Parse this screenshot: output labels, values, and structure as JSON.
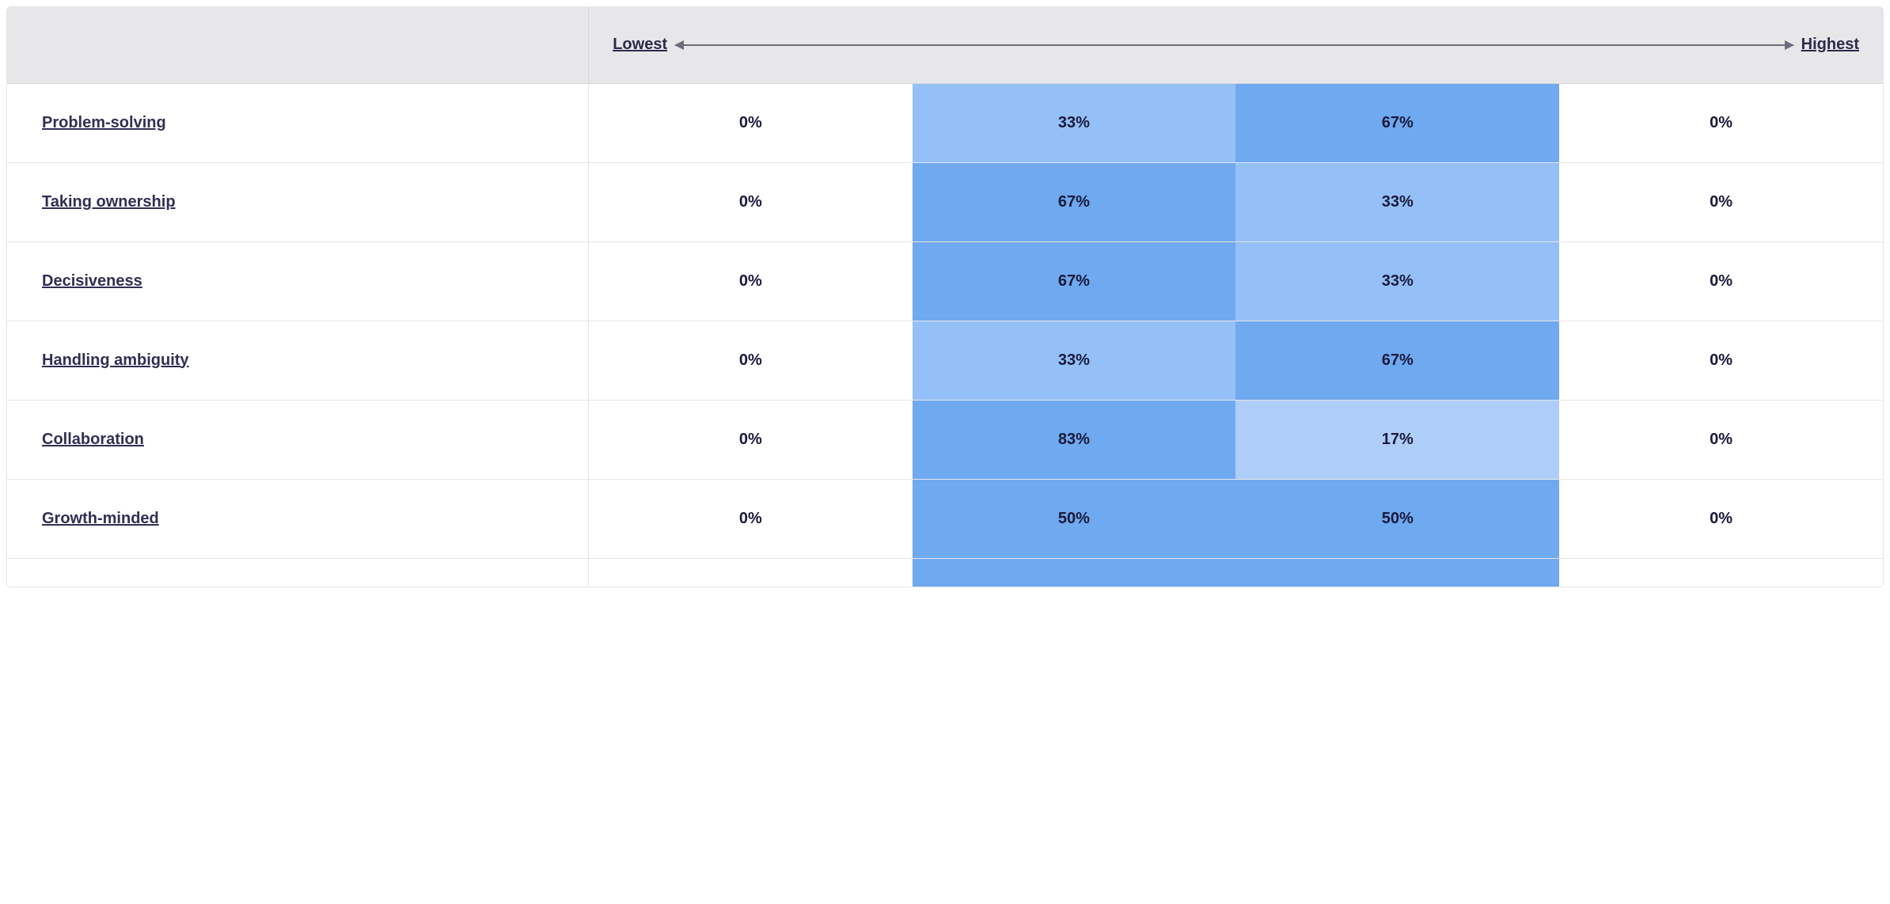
{
  "header": {
    "lowest_label": "Lowest",
    "highest_label": "Highest"
  },
  "colors": {
    "text": "#1a1a3a",
    "link": "#2f2f55",
    "header_bg": "#e7e7ea",
    "border": "#e5e5e8",
    "arrow": "#6c6c7a",
    "cell_bg_default": "#ffffff"
  },
  "heatmap": {
    "type": "table-heatmap",
    "columns": 4,
    "value_suffix": "%",
    "rows": [
      {
        "label": "Problem-solving",
        "values": [
          0,
          33,
          67,
          0
        ],
        "bg_colors": [
          "#ffffff",
          "#94c0f7",
          "#6fa9f0",
          "#ffffff"
        ]
      },
      {
        "label": "Taking ownership",
        "values": [
          0,
          67,
          33,
          0
        ],
        "bg_colors": [
          "#ffffff",
          "#6fa9f0",
          "#94c0f7",
          "#ffffff"
        ]
      },
      {
        "label": "Decisiveness",
        "values": [
          0,
          67,
          33,
          0
        ],
        "bg_colors": [
          "#ffffff",
          "#6fa9f0",
          "#94c0f7",
          "#ffffff"
        ]
      },
      {
        "label": "Handling ambiguity",
        "values": [
          0,
          33,
          67,
          0
        ],
        "bg_colors": [
          "#ffffff",
          "#94c0f7",
          "#6fa9f0",
          "#ffffff"
        ]
      },
      {
        "label": "Collaboration",
        "values": [
          0,
          83,
          17,
          0
        ],
        "bg_colors": [
          "#ffffff",
          "#6fa9f0",
          "#aecef9",
          "#ffffff"
        ]
      },
      {
        "label": "Growth-minded",
        "values": [
          0,
          50,
          50,
          0
        ],
        "bg_colors": [
          "#ffffff",
          "#6fa9f0",
          "#6fa9f0",
          "#ffffff"
        ]
      }
    ],
    "partial_next_row": {
      "bg_colors": [
        "#ffffff",
        "#6fa9f0",
        "#6fa9f0",
        "#ffffff"
      ]
    }
  }
}
